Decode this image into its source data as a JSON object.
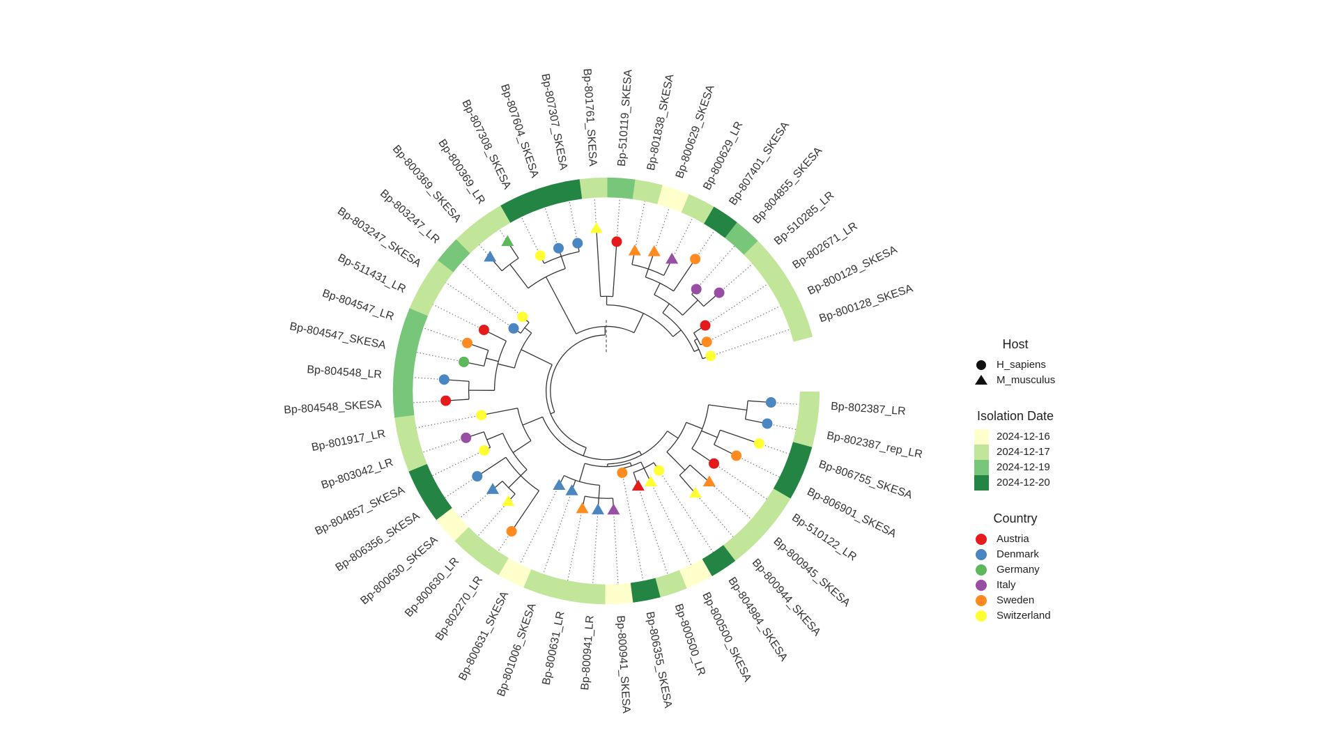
{
  "tips": [
    {
      "label": "Bp-800128_SKESA",
      "host": "H_sapiens",
      "country": "Switzerland",
      "date": "2024-12-17"
    },
    {
      "label": "Bp-800129_SKESA",
      "host": "H_sapiens",
      "country": "Sweden",
      "date": "2024-12-17"
    },
    {
      "label": "Bp-802671_LR",
      "host": "H_sapiens",
      "country": "Austria",
      "date": "2024-12-17"
    },
    {
      "label": "Bp-510285_LR",
      "host": "H_sapiens",
      "country": "Italy",
      "date": "2024-12-17"
    },
    {
      "label": "Bp-804855_SKESA",
      "host": "H_sapiens",
      "country": "Italy",
      "date": "2024-12-19"
    },
    {
      "label": "Bp-807401_SKESA",
      "host": "H_sapiens",
      "country": "Sweden",
      "date": "2024-12-20"
    },
    {
      "label": "Bp-800629_LR",
      "host": "M_musculus",
      "country": "Italy",
      "date": "2024-12-17"
    },
    {
      "label": "Bp-800629_SKESA",
      "host": "M_musculus",
      "country": "Sweden",
      "date": "2024-12-16"
    },
    {
      "label": "Bp-801838_SKESA",
      "host": "M_musculus",
      "country": "Sweden",
      "date": "2024-12-17"
    },
    {
      "label": "Bp-510119_SKESA",
      "host": "H_sapiens",
      "country": "Austria",
      "date": "2024-12-19"
    },
    {
      "label": "Bp-801761_SKESA",
      "host": "M_musculus",
      "country": "Switzerland",
      "date": "2024-12-17"
    },
    {
      "label": "Bp-807307_SKESA",
      "host": "H_sapiens",
      "country": "Denmark",
      "date": "2024-12-20"
    },
    {
      "label": "Bp-807604_SKESA",
      "host": "H_sapiens",
      "country": "Denmark",
      "date": "2024-12-20"
    },
    {
      "label": "Bp-807308_SKESA",
      "host": "H_sapiens",
      "country": "Switzerland",
      "date": "2024-12-20"
    },
    {
      "label": "Bp-800369_LR",
      "host": "M_musculus",
      "country": "Germany",
      "date": "2024-12-17"
    },
    {
      "label": "Bp-800369_SKESA",
      "host": "M_musculus",
      "country": "Denmark",
      "date": "2024-12-17"
    },
    {
      "label": "Bp-803247_LR",
      "host": "H_sapiens",
      "country": "Switzerland",
      "date": "2024-12-19"
    },
    {
      "label": "Bp-803247_SKESA",
      "host": "H_sapiens",
      "country": "Denmark",
      "date": "2024-12-17"
    },
    {
      "label": "Bp-511431_LR",
      "host": "H_sapiens",
      "country": "Austria",
      "date": "2024-12-17"
    },
    {
      "label": "Bp-804547_LR",
      "host": "H_sapiens",
      "country": "Sweden",
      "date": "2024-12-19"
    },
    {
      "label": "Bp-804547_SKESA",
      "host": "H_sapiens",
      "country": "Germany",
      "date": "2024-12-19"
    },
    {
      "label": "Bp-804548_LR",
      "host": "H_sapiens",
      "country": "Denmark",
      "date": "2024-12-19"
    },
    {
      "label": "Bp-804548_SKESA",
      "host": "H_sapiens",
      "country": "Austria",
      "date": "2024-12-19"
    },
    {
      "label": "Bp-801917_LR",
      "host": "H_sapiens",
      "country": "Switzerland",
      "date": "2024-12-17"
    },
    {
      "label": "Bp-803042_LR",
      "host": "H_sapiens",
      "country": "Italy",
      "date": "2024-12-17"
    },
    {
      "label": "Bp-804857_SKESA",
      "host": "H_sapiens",
      "country": "Switzerland",
      "date": "2024-12-20"
    },
    {
      "label": "Bp-806356_SKESA",
      "host": "H_sapiens",
      "country": "Denmark",
      "date": "2024-12-20"
    },
    {
      "label": "Bp-800630_SKESA",
      "host": "M_musculus",
      "country": "Denmark",
      "date": "2024-12-16"
    },
    {
      "label": "Bp-800630_LR",
      "host": "M_musculus",
      "country": "Switzerland",
      "date": "2024-12-17"
    },
    {
      "label": "Bp-802270_LR",
      "host": "H_sapiens",
      "country": "Sweden",
      "date": "2024-12-17"
    },
    {
      "label": "Bp-800631_SKESA",
      "host": "M_musculus",
      "country": "Denmark",
      "date": "2024-12-16"
    },
    {
      "label": "Bp-801006_SKESA",
      "host": "M_musculus",
      "country": "Denmark",
      "date": "2024-12-17"
    },
    {
      "label": "Bp-800631_LR",
      "host": "M_musculus",
      "country": "Sweden",
      "date": "2024-12-17"
    },
    {
      "label": "Bp-800941_LR",
      "host": "M_musculus",
      "country": "Denmark",
      "date": "2024-12-17"
    },
    {
      "label": "Bp-800941_SKESA",
      "host": "M_musculus",
      "country": "Italy",
      "date": "2024-12-16"
    },
    {
      "label": "Bp-806355_SKESA",
      "host": "H_sapiens",
      "country": "Sweden",
      "date": "2024-12-20"
    },
    {
      "label": "Bp-800500_LR",
      "host": "M_musculus",
      "country": "Austria",
      "date": "2024-12-17"
    },
    {
      "label": "Bp-800500_SKESA",
      "host": "M_musculus",
      "country": "Switzerland",
      "date": "2024-12-16"
    },
    {
      "label": "Bp-804984_SKESA",
      "host": "H_sapiens",
      "country": "Switzerland",
      "date": "2024-12-20"
    },
    {
      "label": "Bp-800944_SKESA",
      "host": "M_musculus",
      "country": "Switzerland",
      "date": "2024-12-17"
    },
    {
      "label": "Bp-800945_SKESA",
      "host": "M_musculus",
      "country": "Sweden",
      "date": "2024-12-17"
    },
    {
      "label": "Bp-510122_LR",
      "host": "H_sapiens",
      "country": "Austria",
      "date": "2024-12-17"
    },
    {
      "label": "Bp-806901_SKESA",
      "host": "H_sapiens",
      "country": "Sweden",
      "date": "2024-12-20"
    },
    {
      "label": "Bp-806755_SKESA",
      "host": "H_sapiens",
      "country": "Switzerland",
      "date": "2024-12-20"
    },
    {
      "label": "Bp-802387_rep_LR",
      "host": "H_sapiens",
      "country": "Denmark",
      "date": "2024-12-17"
    },
    {
      "label": "Bp-802387_LR",
      "host": "H_sapiens",
      "country": "Denmark",
      "date": "2024-12-17"
    }
  ],
  "legends": [
    {
      "title": "Host",
      "items": [
        {
          "label": "H_sapiens",
          "shape": "circle"
        },
        {
          "label": "M_musculus",
          "shape": "triangle"
        }
      ]
    },
    {
      "title": "Isolation Date",
      "items": [
        {
          "label": "2024-12-16",
          "color": "#ffffcc"
        },
        {
          "label": "2024-12-17",
          "color": "#c2e699"
        },
        {
          "label": "2024-12-19",
          "color": "#78c679"
        },
        {
          "label": "2024-12-20",
          "color": "#238443"
        }
      ]
    },
    {
      "title": "Country",
      "items": [
        {
          "label": "Austria",
          "color": "#e41a1c"
        },
        {
          "label": "Denmark",
          "color": "#4a86c0"
        },
        {
          "label": "Germany",
          "color": "#5cb85a"
        },
        {
          "label": "Italy",
          "color": "#984ea3"
        },
        {
          "label": "Sweden",
          "color": "#ff8a1f"
        },
        {
          "label": "Switzerland",
          "color": "#ffff33"
        }
      ]
    }
  ]
}
